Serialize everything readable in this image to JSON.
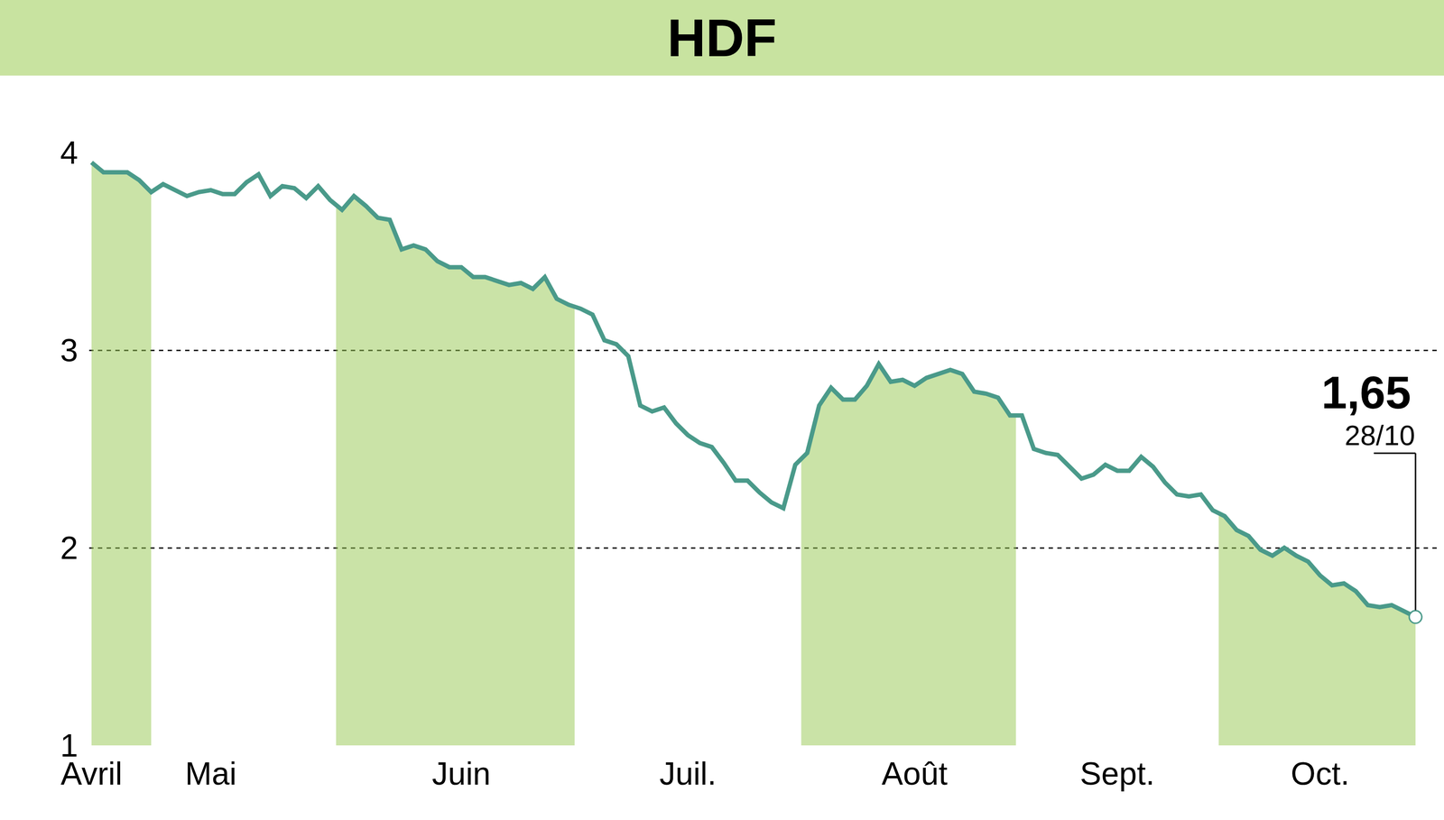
{
  "chart_data": {
    "type": "line",
    "title": "HDF",
    "categories": [
      "Avril",
      null,
      null,
      null,
      null,
      null,
      null,
      null,
      null,
      null,
      "Mai",
      null,
      null,
      null,
      null,
      null,
      null,
      null,
      null,
      null,
      null,
      null,
      null,
      null,
      null,
      null,
      null,
      null,
      null,
      null,
      null,
      "Juin",
      null,
      null,
      null,
      null,
      null,
      null,
      null,
      null,
      null,
      null,
      null,
      null,
      null,
      null,
      null,
      null,
      null,
      null,
      "Juil.",
      null,
      null,
      null,
      null,
      null,
      null,
      null,
      null,
      null,
      null,
      null,
      null,
      null,
      null,
      null,
      null,
      null,
      null,
      "Août",
      null,
      null,
      null,
      null,
      null,
      null,
      null,
      null,
      null,
      null,
      null,
      null,
      null,
      null,
      null,
      null,
      "Sept.",
      null,
      null,
      null,
      null,
      null,
      null,
      null,
      null,
      null,
      null,
      null,
      null,
      null,
      null,
      null,
      null,
      "Oct.",
      null,
      null,
      null,
      null,
      null,
      null,
      null,
      null
    ],
    "values": [
      3.95,
      3.9,
      3.9,
      3.9,
      3.86,
      3.8,
      3.84,
      3.81,
      3.78,
      3.8,
      3.81,
      3.79,
      3.79,
      3.85,
      3.89,
      3.78,
      3.83,
      3.82,
      3.77,
      3.83,
      3.76,
      3.71,
      3.78,
      3.73,
      3.67,
      3.66,
      3.51,
      3.53,
      3.51,
      3.45,
      3.42,
      3.42,
      3.37,
      3.37,
      3.35,
      3.33,
      3.34,
      3.31,
      3.37,
      3.26,
      3.23,
      3.21,
      3.18,
      3.05,
      3.03,
      2.97,
      2.72,
      2.69,
      2.71,
      2.63,
      2.57,
      2.53,
      2.51,
      2.43,
      2.34,
      2.34,
      2.28,
      2.23,
      2.2,
      2.42,
      2.48,
      2.72,
      2.81,
      2.75,
      2.75,
      2.82,
      2.93,
      2.84,
      2.85,
      2.82,
      2.86,
      2.88,
      2.9,
      2.88,
      2.79,
      2.78,
      2.76,
      2.67,
      2.67,
      2.5,
      2.48,
      2.47,
      2.41,
      2.35,
      2.37,
      2.42,
      2.39,
      2.39,
      2.46,
      2.41,
      2.33,
      2.27,
      2.26,
      2.27,
      2.19,
      2.16,
      2.09,
      2.06,
      1.99,
      1.96,
      2.0,
      1.96,
      1.93,
      1.86,
      1.81,
      1.82,
      1.78,
      1.71,
      1.7,
      1.71,
      1.68,
      1.65
    ],
    "color": "#4a9a8a",
    "ylim": [
      1,
      4
    ],
    "yticks": [
      1,
      2,
      3,
      4
    ],
    "grid": true,
    "annotations": [
      {
        "label": "1,65",
        "value": 1.65
      },
      {
        "label": "28/10"
      }
    ]
  }
}
